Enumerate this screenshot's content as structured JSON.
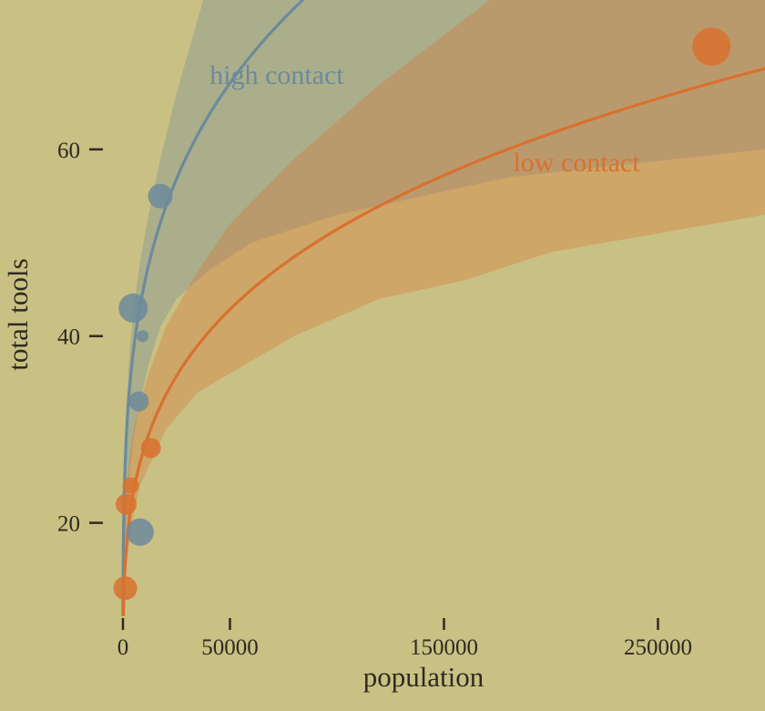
{
  "chart_data": {
    "type": "scatter",
    "title": "",
    "xlabel": "population",
    "ylabel": "total tools",
    "background_color": "#c9c084",
    "text_color": "#2e2a20",
    "xlim": [
      0,
      300000
    ],
    "ylim": [
      10,
      76
    ],
    "grid": false,
    "legend_position": "inline-curve-labels",
    "x_ticks": [
      {
        "value": 0,
        "label": "0"
      },
      {
        "value": 50000,
        "label": "50000"
      },
      {
        "value": 150000,
        "label": "150000"
      },
      {
        "value": 250000,
        "label": "250000"
      }
    ],
    "y_ticks": [
      {
        "value": 20,
        "label": "20"
      },
      {
        "value": 40,
        "label": "40"
      },
      {
        "value": 60,
        "label": "60"
      }
    ],
    "series": [
      {
        "name": "high contact",
        "color": "#6c8a9b",
        "band_opacity": 0.32,
        "line_width": 3.2,
        "curve": {
          "model": "power",
          "coef": 5.0,
          "exponent": 0.24
        },
        "points": [
          {
            "x": 4791,
            "y": 43,
            "size": 16
          },
          {
            "x": 7400,
            "y": 33,
            "size": 11
          },
          {
            "x": 8000,
            "y": 19,
            "size": 15
          },
          {
            "x": 9200,
            "y": 40,
            "size": 6.5
          },
          {
            "x": 17500,
            "y": 55,
            "size": 13.5
          }
        ],
        "band": [
          [
            50,
            6,
            14
          ],
          [
            500,
            14,
            26
          ],
          [
            1500,
            20,
            32
          ],
          [
            3000,
            25,
            38
          ],
          [
            5000,
            29,
            43
          ],
          [
            8000,
            33,
            48
          ],
          [
            12000,
            37,
            53
          ],
          [
            17500,
            41,
            59
          ],
          [
            25000,
            44,
            66
          ],
          [
            40000,
            47,
            78
          ],
          [
            60000,
            50,
            92
          ],
          [
            100000,
            53,
            115
          ],
          [
            180000,
            57,
            160
          ],
          [
            300000,
            60,
            220
          ]
        ]
      },
      {
        "name": "low contact",
        "color": "#d9712e",
        "band_opacity": 0.32,
        "line_width": 3.2,
        "curve": {
          "model": "power",
          "coef": 2.49,
          "exponent": 0.263
        },
        "points": [
          {
            "x": 1100,
            "y": 13,
            "size": 13
          },
          {
            "x": 1500,
            "y": 22,
            "size": 11.5
          },
          {
            "x": 3600,
            "y": 24,
            "size": 9
          },
          {
            "x": 13000,
            "y": 28,
            "size": 11
          },
          {
            "x": 275000,
            "y": 71,
            "size": 21
          }
        ],
        "band": [
          [
            50,
            5,
            11
          ],
          [
            500,
            11,
            18
          ],
          [
            1500,
            15,
            23
          ],
          [
            3000,
            18,
            27
          ],
          [
            5000,
            21,
            30
          ],
          [
            8000,
            24,
            33
          ],
          [
            12000,
            26,
            36
          ],
          [
            20000,
            30,
            41
          ],
          [
            35000,
            34,
            47
          ],
          [
            50000,
            36,
            52
          ],
          [
            80000,
            40,
            59
          ],
          [
            120000,
            44,
            67
          ],
          [
            160000,
            46,
            74
          ],
          [
            200000,
            49,
            81
          ],
          [
            250000,
            51,
            89
          ],
          [
            300000,
            53,
            98
          ]
        ]
      }
    ]
  }
}
